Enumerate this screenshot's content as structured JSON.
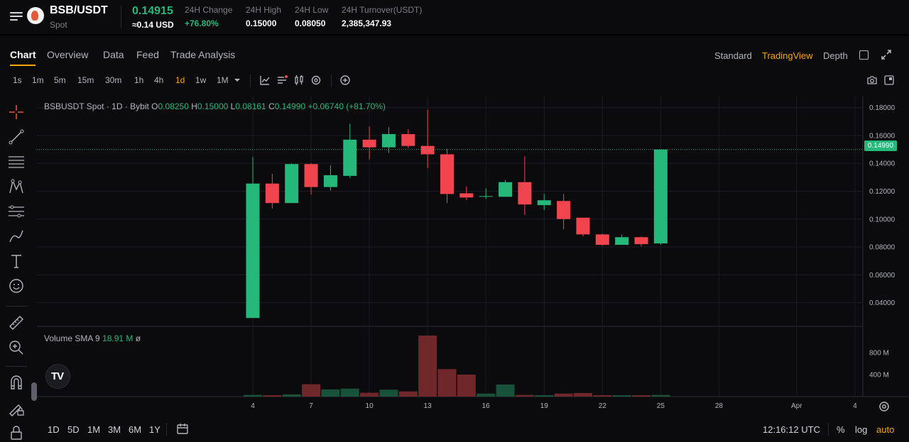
{
  "ticker": {
    "pair": "BSB/USDT",
    "market": "Spot",
    "last_price": "0.14915",
    "last_price_usd": "≈0.14 USD",
    "stats": [
      {
        "label": "24H Change",
        "value": "+76.80%",
        "direction": "up"
      },
      {
        "label": "24H High",
        "value": "0.15000",
        "direction": "neutral"
      },
      {
        "label": "24H Low",
        "value": "0.08050",
        "direction": "neutral"
      },
      {
        "label": "24H Turnover(USDT)",
        "value": "2,385,347.93",
        "direction": "neutral"
      }
    ]
  },
  "tabs": [
    {
      "label": "Chart",
      "active": true
    },
    {
      "label": "Overview",
      "active": false
    },
    {
      "label": "Data",
      "active": false
    },
    {
      "label": "Feed",
      "active": false
    },
    {
      "label": "Trade Analysis",
      "active": false
    }
  ],
  "views": [
    {
      "label": "Standard",
      "active": false
    },
    {
      "label": "TradingView",
      "active": true
    },
    {
      "label": "Depth",
      "active": false
    }
  ],
  "timeframes": [
    {
      "label": "1s",
      "active": false
    },
    {
      "label": "1m",
      "active": false
    },
    {
      "label": "5m",
      "active": false
    },
    {
      "label": "15m",
      "active": false
    },
    {
      "label": "30m",
      "active": false
    },
    {
      "label": "1h",
      "active": false
    },
    {
      "label": "4h",
      "active": false
    },
    {
      "label": "1d",
      "active": true
    },
    {
      "label": "1w",
      "active": false
    },
    {
      "label": "1M",
      "active": false
    }
  ],
  "legend": {
    "symbol": "BSBUSDT Spot · 1D · Bybit",
    "o_label": "O",
    "o": "0.08250",
    "h_label": "H",
    "h": "0.15000",
    "l_label": "L",
    "l": "0.08161",
    "c_label": "C",
    "c": "0.14990",
    "change": "+0.06740 (+81.70%)"
  },
  "volume_legend": {
    "label": "Volume SMA 9",
    "value": "18.91 M",
    "extra": "ø"
  },
  "price_tag": "0.14990",
  "tv_logo": "TV",
  "range_buttons": [
    "1D",
    "5D",
    "1M",
    "3M",
    "6M",
    "1Y"
  ],
  "clock": "12:16:12 UTC",
  "bottom_options": [
    {
      "label": "%",
      "active": false
    },
    {
      "label": "log",
      "active": false
    },
    {
      "label": "auto",
      "active": true
    }
  ],
  "colors": {
    "up": "#26b87b",
    "down": "#f0444f",
    "accent": "#f7a600"
  },
  "chart_data": {
    "type": "candlestick",
    "price_axis": {
      "ticks": [
        "0.18000",
        "0.16000",
        "0.14000",
        "0.12000",
        "0.10000",
        "0.08000",
        "0.06000",
        "0.04000"
      ],
      "ylim": [
        0.024,
        0.188
      ]
    },
    "volume_axis": {
      "ticks": [
        "800 M",
        "400 M"
      ]
    },
    "x_axis": {
      "ticks": [
        "4",
        "7",
        "10",
        "13",
        "16",
        "19",
        "22",
        "25",
        "28",
        "Apr",
        "4"
      ]
    },
    "current_price": 0.1499,
    "candles": [
      {
        "o": 0.029,
        "h": 0.1445,
        "l": 0.029,
        "c": 0.1255,
        "vol": 30
      },
      {
        "o": 0.1255,
        "h": 0.1325,
        "l": 0.1075,
        "c": 0.1115,
        "vol": 25
      },
      {
        "o": 0.1115,
        "h": 0.14,
        "l": 0.1115,
        "c": 0.1395,
        "vol": 40
      },
      {
        "o": 0.1395,
        "h": 0.14,
        "l": 0.1175,
        "c": 0.123,
        "vol": 225
      },
      {
        "o": 0.123,
        "h": 0.1385,
        "l": 0.1205,
        "c": 0.1315,
        "vol": 130
      },
      {
        "o": 0.131,
        "h": 0.1685,
        "l": 0.1295,
        "c": 0.157,
        "vol": 145
      },
      {
        "o": 0.157,
        "h": 0.1665,
        "l": 0.143,
        "c": 0.1515,
        "vol": 70
      },
      {
        "o": 0.1515,
        "h": 0.166,
        "l": 0.1475,
        "c": 0.161,
        "vol": 125
      },
      {
        "o": 0.161,
        "h": 0.1645,
        "l": 0.151,
        "c": 0.1525,
        "vol": 95
      },
      {
        "o": 0.1525,
        "h": 0.1785,
        "l": 0.1365,
        "c": 0.1465,
        "vol": 1110
      },
      {
        "o": 0.1465,
        "h": 0.1505,
        "l": 0.1115,
        "c": 0.118,
        "vol": 500
      },
      {
        "o": 0.1185,
        "h": 0.1235,
        "l": 0.1135,
        "c": 0.1155,
        "vol": 400
      },
      {
        "o": 0.116,
        "h": 0.122,
        "l": 0.1145,
        "c": 0.1165,
        "vol": 55
      },
      {
        "o": 0.116,
        "h": 0.128,
        "l": 0.116,
        "c": 0.1265,
        "vol": 220
      },
      {
        "o": 0.1265,
        "h": 0.145,
        "l": 0.103,
        "c": 0.1105,
        "vol": 30
      },
      {
        "o": 0.11,
        "h": 0.118,
        "l": 0.1065,
        "c": 0.1135,
        "vol": 20
      },
      {
        "o": 0.113,
        "h": 0.118,
        "l": 0.0925,
        "c": 0.1,
        "vol": 55
      },
      {
        "o": 0.101,
        "h": 0.101,
        "l": 0.0875,
        "c": 0.089,
        "vol": 65
      },
      {
        "o": 0.089,
        "h": 0.0895,
        "l": 0.081,
        "c": 0.0815,
        "vol": 20
      },
      {
        "o": 0.0815,
        "h": 0.089,
        "l": 0.0815,
        "c": 0.087,
        "vol": 18
      },
      {
        "o": 0.087,
        "h": 0.0875,
        "l": 0.0805,
        "c": 0.082,
        "vol": 10
      },
      {
        "o": 0.0825,
        "h": 0.15,
        "l": 0.0816,
        "c": 0.1499,
        "vol": 30
      }
    ]
  }
}
